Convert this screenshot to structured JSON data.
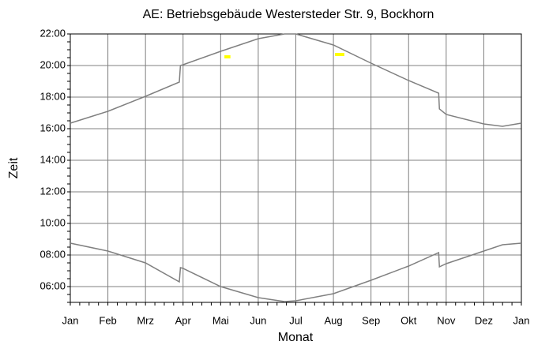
{
  "chart_data": {
    "type": "line",
    "title": "AE: Betriebsgebäude Westersteder Str. 9, Bockhorn",
    "xlabel": "Monat",
    "ylabel": "Zeit",
    "xlim": [
      0,
      12
    ],
    "ylim": [
      5,
      22
    ],
    "xticks": [
      {
        "value": 0,
        "label": "Jan"
      },
      {
        "value": 1,
        "label": "Feb"
      },
      {
        "value": 2,
        "label": "Mrz"
      },
      {
        "value": 3,
        "label": "Apr"
      },
      {
        "value": 4,
        "label": "Mai"
      },
      {
        "value": 5,
        "label": "Jun"
      },
      {
        "value": 6,
        "label": "Jul"
      },
      {
        "value": 7,
        "label": "Aug"
      },
      {
        "value": 8,
        "label": "Sep"
      },
      {
        "value": 9,
        "label": "Okt"
      },
      {
        "value": 10,
        "label": "Nov"
      },
      {
        "value": 11,
        "label": "Dez"
      },
      {
        "value": 12,
        "label": "Jan"
      }
    ],
    "yticks": [
      {
        "value": 6,
        "label": "06:00"
      },
      {
        "value": 8,
        "label": "08:00"
      },
      {
        "value": 10,
        "label": "10:00"
      },
      {
        "value": 12,
        "label": "12:00"
      },
      {
        "value": 14,
        "label": "14:00"
      },
      {
        "value": 16,
        "label": "16:00"
      },
      {
        "value": 18,
        "label": "18:00"
      },
      {
        "value": 20,
        "label": "20:00"
      },
      {
        "value": 22,
        "label": "22:00"
      }
    ],
    "grid": true,
    "series": [
      {
        "color": "#808080",
        "width": 1.5,
        "x": [
          0,
          1,
          2,
          2.9,
          2.93,
          3,
          4,
          5,
          5.7,
          6,
          7,
          8,
          9,
          9.8,
          9.82,
          10,
          11,
          11.5,
          12
        ],
        "values": [
          16.35,
          17.1,
          18.05,
          18.95,
          20.0,
          20.05,
          20.9,
          21.7,
          22.0,
          22.0,
          21.3,
          20.15,
          19.05,
          18.25,
          17.25,
          16.9,
          16.3,
          16.15,
          16.35
        ]
      },
      {
        "color": "#808080",
        "width": 1.5,
        "x": [
          0,
          1,
          2,
          2.9,
          2.93,
          3,
          4,
          5,
          5.7,
          6,
          7,
          8,
          9,
          9.8,
          9.82,
          10,
          11,
          11.5,
          12
        ],
        "values": [
          8.75,
          8.25,
          7.5,
          6.3,
          7.2,
          7.15,
          6.0,
          5.3,
          5.05,
          5.1,
          5.55,
          6.4,
          7.3,
          8.15,
          7.25,
          7.45,
          8.25,
          8.65,
          8.75
        ]
      },
      {
        "color": "#ffff00",
        "width": 4,
        "x": [
          4.1,
          4.26
        ],
        "values": [
          20.55,
          20.55
        ]
      },
      {
        "color": "#ffff00",
        "width": 4,
        "x": [
          7.04,
          7.29
        ],
        "values": [
          20.7,
          20.7
        ]
      }
    ]
  }
}
